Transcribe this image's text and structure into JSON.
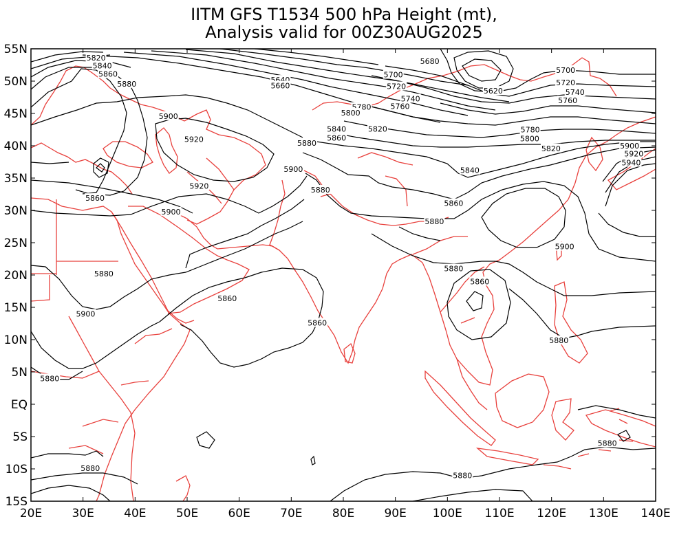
{
  "title": {
    "line1": "IITM GFS T1534 500 hPa Height (mt),",
    "line2": "Analysis valid for 00Z30AUG2025"
  },
  "map": {
    "lon_range": [
      20,
      140
    ],
    "lat_range": [
      -15,
      55
    ],
    "coastline_color": "#e8403c",
    "contour_color": "#000000",
    "contour_interval": 20
  },
  "axes": {
    "y_ticks": [
      "55N",
      "50N",
      "45N",
      "40N",
      "35N",
      "30N",
      "25N",
      "20N",
      "15N",
      "10N",
      "5N",
      "EQ",
      "5S",
      "10S",
      "15S"
    ],
    "x_ticks": [
      "20E",
      "30E",
      "40E",
      "50E",
      "60E",
      "70E",
      "80E",
      "90E",
      "100E",
      "110E",
      "120E",
      "130E",
      "140E"
    ]
  },
  "contour_labels": [
    {
      "text": "5820",
      "lon": 32.5,
      "lat": 53.6
    },
    {
      "text": "5840",
      "lon": 33.7,
      "lat": 52.4
    },
    {
      "text": "5860",
      "lon": 34.8,
      "lat": 51.1
    },
    {
      "text": "5880",
      "lon": 38.4,
      "lat": 49.6
    },
    {
      "text": "5900",
      "lon": 46.4,
      "lat": 44.6
    },
    {
      "text": "5920",
      "lon": 51.3,
      "lat": 41.0
    },
    {
      "text": "5920",
      "lon": 52.3,
      "lat": 33.8
    },
    {
      "text": "5900",
      "lon": 46.9,
      "lat": 29.8
    },
    {
      "text": "5860",
      "lon": 32.3,
      "lat": 31.9
    },
    {
      "text": "5640",
      "lon": 67.9,
      "lat": 50.2
    },
    {
      "text": "5660",
      "lon": 67.9,
      "lat": 49.3
    },
    {
      "text": "5680",
      "lon": 96.6,
      "lat": 53.1
    },
    {
      "text": "5700",
      "lon": 89.6,
      "lat": 51.0
    },
    {
      "text": "5720",
      "lon": 90.2,
      "lat": 49.2
    },
    {
      "text": "5740",
      "lon": 92.9,
      "lat": 47.3
    },
    {
      "text": "5760",
      "lon": 90.9,
      "lat": 46.1
    },
    {
      "text": "5780",
      "lon": 83.5,
      "lat": 46.0
    },
    {
      "text": "5800",
      "lon": 81.4,
      "lat": 45.1
    },
    {
      "text": "5820",
      "lon": 86.6,
      "lat": 42.6
    },
    {
      "text": "5840",
      "lon": 78.7,
      "lat": 42.6
    },
    {
      "text": "5860",
      "lon": 78.7,
      "lat": 41.2
    },
    {
      "text": "5880",
      "lon": 73.0,
      "lat": 40.4
    },
    {
      "text": "5900",
      "lon": 70.4,
      "lat": 36.4
    },
    {
      "text": "5880",
      "lon": 75.6,
      "lat": 33.2
    },
    {
      "text": "5620",
      "lon": 108.8,
      "lat": 48.5
    },
    {
      "text": "5700",
      "lon": 122.7,
      "lat": 51.7
    },
    {
      "text": "5720",
      "lon": 122.7,
      "lat": 49.8
    },
    {
      "text": "5740",
      "lon": 124.5,
      "lat": 48.3
    },
    {
      "text": "5760",
      "lon": 123.1,
      "lat": 47.0
    },
    {
      "text": "5780",
      "lon": 115.9,
      "lat": 42.5
    },
    {
      "text": "5800",
      "lon": 115.8,
      "lat": 41.1
    },
    {
      "text": "5820",
      "lon": 119.9,
      "lat": 39.6
    },
    {
      "text": "5840",
      "lon": 104.3,
      "lat": 36.2
    },
    {
      "text": "5860",
      "lon": 101.2,
      "lat": 31.1
    },
    {
      "text": "5880",
      "lon": 97.5,
      "lat": 28.3
    },
    {
      "text": "5900",
      "lon": 135.0,
      "lat": 40.0
    },
    {
      "text": "5920",
      "lon": 135.8,
      "lat": 38.8
    },
    {
      "text": "5940",
      "lon": 135.3,
      "lat": 37.4
    },
    {
      "text": "5900",
      "lon": 122.5,
      "lat": 24.4
    },
    {
      "text": "5880",
      "lon": 101.2,
      "lat": 21.0
    },
    {
      "text": "5860",
      "lon": 106.2,
      "lat": 19.0
    },
    {
      "text": "5880",
      "lon": 34.0,
      "lat": 20.2
    },
    {
      "text": "5860",
      "lon": 57.7,
      "lat": 16.4
    },
    {
      "text": "5900",
      "lon": 30.5,
      "lat": 14.0
    },
    {
      "text": "5860",
      "lon": 75.0,
      "lat": 12.6
    },
    {
      "text": "5880",
      "lon": 23.6,
      "lat": 4.0
    },
    {
      "text": "5880",
      "lon": 121.4,
      "lat": 9.9
    },
    {
      "text": "5880",
      "lon": 130.7,
      "lat": -6.0
    },
    {
      "text": "5880",
      "lon": 31.4,
      "lat": -9.9
    },
    {
      "text": "5880",
      "lon": 102.9,
      "lat": -11.0
    }
  ]
}
